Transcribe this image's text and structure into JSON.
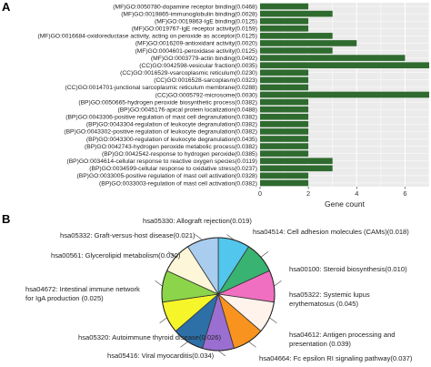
{
  "panel_a_label": "A",
  "panel_b_label": "B",
  "chart_data": [
    {
      "type": "bar",
      "orientation": "horizontal",
      "panel": "A",
      "categories": [
        "(MF)GO:0050780-dopamine receptor binding(0.0468)",
        "(MF)GO:0019865-immunoglobulin binding(0.0028)",
        "(MF)GO:0019863-IgE binding(0.0125)",
        "(MF)GO:0019767-IgE receptor activity(0.0159)",
        "(MF)GO:0016684-oxidoreductase activity, acting on peroxide as acceptor(0.0125)",
        "(MF)GO:0016209-antioxidant activity(0.0020)",
        "(MF)GO:0004601-peroxidase activity(0.0125)",
        "(MF)GO:0003779-actin binding(0.0492)",
        "(CC)GO:0042598-vesicular fraction(0.0035)",
        "(CC)GO:0016529-vsarcoplasmic reticulum(0.0230)",
        "(CC)GO:0016528-sarcoplasm(0.0323)",
        "(CC)GO:0014701-junctional sarcoplasmic reticulum membrane(0.0288)",
        "(CC)GO:0005792-microsome(0.0030)",
        "(BP)GO:0050665-hydrogen peroxide biosynthetic process(0.0382)",
        "(BP)GO:0045176-apical protein localization(0.0488)",
        "(BP)GO:0043306-positive regulation of mast cell degranulation(0.0382)",
        "(BP)GO:0043304-regulation of leukocyte degranulation(0.0382)",
        "(BP)GO:0043302-positive regulation of leukocyte degranulation(0.0382)",
        "(BP)GO:0043300-regulation of leukocyte degranulation(0.0435)",
        "(BP)GO:0042743-hydrogen peroxide metabolic process(0.0382)",
        "(BP)GO:0042542-response to hydrogen peroxide(0.0385)",
        "(BP)GO:0034614-cellular response to reactive oxygen species(0.0119)",
        "(BP)GO:0034599-cellular response to oxidative stress(0.0237)",
        "(BP)GO:0033005-positive regulation of mast cell activation(0.0328)",
        "(BP)GO:0033003-regulation of mast cell activation(0.0382)"
      ],
      "values": [
        2,
        3,
        2,
        2,
        3,
        4,
        3,
        6,
        7,
        2,
        2,
        2,
        7,
        2,
        2,
        2,
        2,
        2,
        2,
        2,
        2,
        3,
        3,
        2,
        2
      ],
      "xlabel": "Gene count",
      "xlim": [
        0,
        7
      ],
      "xticks": [
        0,
        2,
        4,
        6
      ],
      "grid": true,
      "colors": {
        "bar": "#2f6b2f",
        "panel_bg": "#ebebeb",
        "grid": "#ffffff"
      }
    },
    {
      "type": "pie",
      "panel": "B",
      "labels": [
        "hsa05330: Allograft rejection(0.019)",
        "hsa04514: Cell adhesion molecules (CAMs)(0.018)",
        "hsa00100: Steroid biosynthesis(0.010)",
        "hsa05322: Systemic lupus erythematosus (0.045)",
        "hsa04612: Antigen processing and presentation (0.039)",
        "hsa04664: Fc epsilon RI signaling pathway(0.037)",
        "hsa05416: Viral myocarditis(0.034)",
        "hsa05320: Autoimmune thyroid disease(0.026)",
        "hsa04672: Intestinal immune network for IgA production (0.025)",
        "hsa00561: Glycerolipid metabolism(0.030)",
        "hsa05332: Graft-versus-host disease(0.021)"
      ],
      "label_lines": [
        [
          "hsa05330: Allograft rejection(0.019)"
        ],
        [
          "hsa04514: Cell adhesion molecules (CAMs)(0.018)"
        ],
        [
          "hsa00100: Steroid biosynthesis(0.010)"
        ],
        [
          "hsa05322: Systemic lupus",
          "erythematosus (0.045)"
        ],
        [
          "hsa04612: Antigen processing and",
          "presentation (0.039)"
        ],
        [
          "hsa04664: Fc epsilon RI signaling pathway(0.037)"
        ],
        [
          "hsa05416: Viral myocarditis(0.034)"
        ],
        [
          "hsa05320: Autoimmune thyroid disease(0.026)"
        ],
        [
          "hsa04672: Intestinal immune network",
          "for IgA production (0.025)"
        ],
        [
          "hsa00561: Glycerolipid metabolism(0.030)"
        ],
        [
          "hsa05332: Graft-versus-host disease(0.021)"
        ]
      ],
      "values": [
        1,
        1,
        1,
        1,
        1,
        1,
        1,
        1,
        1,
        1,
        1
      ],
      "colors": [
        "#52c6ec",
        "#39b371",
        "#f06fc0",
        "#fff3ec",
        "#f7931e",
        "#9b6fd1",
        "#2d70a8",
        "#f5f52a",
        "#8cd449",
        "#fdf6d8",
        "#a9cdee"
      ]
    }
  ]
}
